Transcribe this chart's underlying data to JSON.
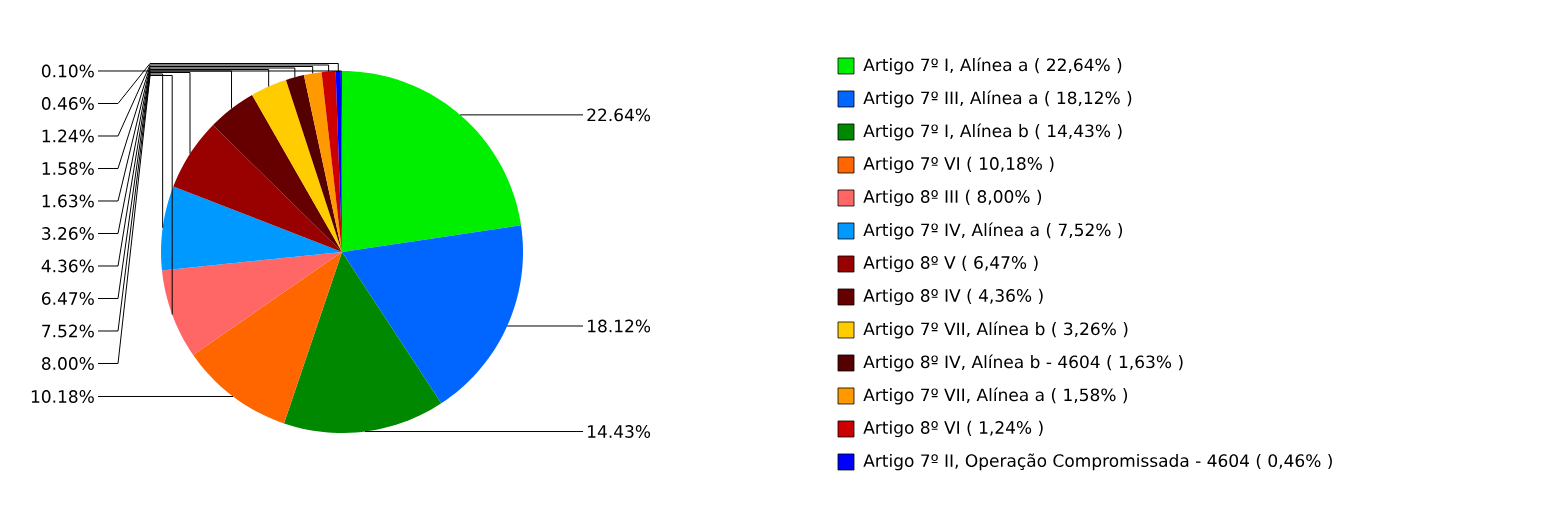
{
  "chart_data": {
    "type": "pie",
    "categories": [
      "Artigo 7º I, Alínea a   ( 22,64% )",
      "Artigo 7º III, Alínea a   ( 18,12% )",
      "Artigo 7º I, Alínea b   ( 14,43% )",
      "Artigo 7º VI   ( 10,18% )",
      "Artigo 8º III   ( 8,00% )",
      "Artigo 7º IV, Alínea a   ( 7,52% )",
      "Artigo 8º V   ( 6,47% )",
      "Artigo 8º IV   ( 4,36% )",
      "Artigo 7º VII, Alínea b   ( 3,26% )",
      "Artigo 8º IV, Alínea b - 4604   ( 1,63% )",
      "Artigo 7º VII, Alínea a   ( 1,58% )",
      "Artigo 8º VI   ( 1,24% )",
      "Artigo 7º II, Operação Compromissada - 4604   ( 0,46% )",
      null
    ],
    "values": [
      22.64,
      18.12,
      14.43,
      10.18,
      8.0,
      7.52,
      6.47,
      4.36,
      3.26,
      1.63,
      1.58,
      1.24,
      0.46,
      0.1
    ],
    "colors": [
      "#00ee00",
      "#0066ff",
      "#008800",
      "#ff6600",
      "#ff6666",
      "#0099ff",
      "#990000",
      "#660000",
      "#ffcc00",
      "#550000",
      "#ff9900",
      "#cc0000",
      "#0000ff",
      "#800080"
    ],
    "value_labels": [
      "22.64%",
      "18.12%",
      "14.43%",
      "10.18%",
      "8.00%",
      "7.52%",
      "6.47%",
      "4.36%",
      "3.26%",
      "1.63%",
      "1.58%",
      "1.24%",
      "0.46%",
      "0.10%"
    ],
    "legend": "right"
  }
}
